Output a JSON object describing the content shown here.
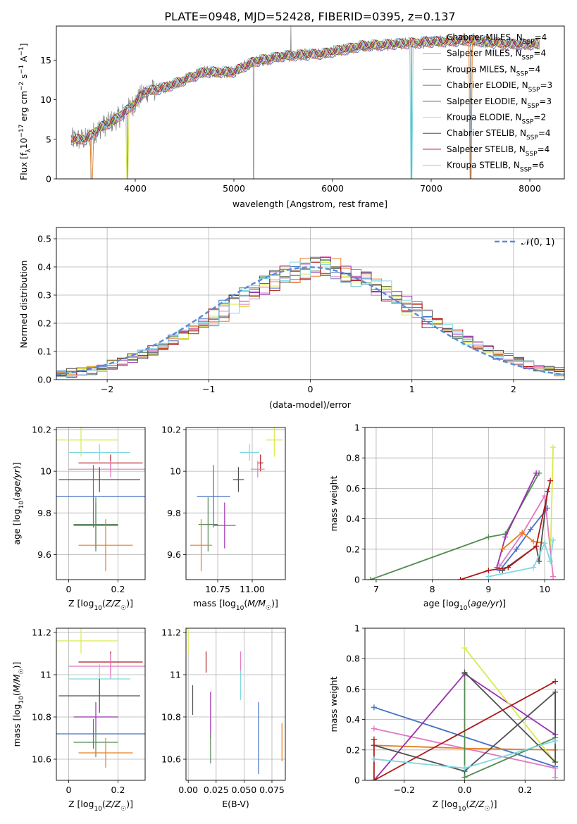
{
  "title": "PLATE=0948, MJD=52428, FIBERID=0395, z=0.137",
  "colors": {
    "Chabrier MILES": "#4472c4",
    "Salpeter MILES": "#e377c2",
    "Kroupa MILES": "#e67e22",
    "Chabrier ELODIE": "#548b54",
    "Salpeter ELODIE": "#9b30b0",
    "Kroupa ELODIE": "#d9ea4a",
    "Chabrier STELIB": "#505050",
    "Salpeter STELIB": "#b01818",
    "Kroupa STELIB": "#7dd8e0",
    "gaussian": "#5b8bd9",
    "grid": "#b0b0b0",
    "data": "#808080"
  },
  "models": [
    "Chabrier MILES",
    "Salpeter MILES",
    "Kroupa MILES",
    "Chabrier ELODIE",
    "Salpeter ELODIE",
    "Kroupa ELODIE",
    "Chabrier STELIB",
    "Salpeter STELIB",
    "Kroupa STELIB"
  ],
  "chart_data": [
    {
      "type": "line",
      "panel": "spectrum",
      "xlabel": "wavelength [Angstrom, rest frame]",
      "ylabel": "Flux [f_λ 10^-17 erg cm^-2 s^-1 A^-1]",
      "xlim": [
        3200,
        8350
      ],
      "ylim": [
        0,
        19.3
      ],
      "xticks": [
        4000,
        5000,
        6000,
        7000,
        8000
      ],
      "yticks": [
        0,
        5,
        10,
        15
      ],
      "legend": [
        {
          "model": "Chabrier MILES",
          "label": "Chabrier MILES, N",
          "sub": "SSP",
          "val": "=4"
        },
        {
          "model": "Salpeter MILES",
          "label": "Salpeter MILES, N",
          "sub": "SSP",
          "val": "=4"
        },
        {
          "model": "Kroupa MILES",
          "label": "Kroupa MILES, N",
          "sub": "SSP",
          "val": "=4"
        },
        {
          "model": "Chabrier ELODIE",
          "label": "Chabrier ELODIE, N",
          "sub": "SSP",
          "val": "=3"
        },
        {
          "model": "Salpeter ELODIE",
          "label": "Salpeter ELODIE, N",
          "sub": "SSP",
          "val": "=3"
        },
        {
          "model": "Kroupa ELODIE",
          "label": "Kroupa ELODIE, N",
          "sub": "SSP",
          "val": "=2"
        },
        {
          "model": "Chabrier STELIB",
          "label": "Chabrier STELIB, N",
          "sub": "SSP",
          "val": "=4"
        },
        {
          "model": "Salpeter STELIB",
          "label": "Salpeter STELIB, N",
          "sub": "SSP",
          "val": "=4"
        },
        {
          "model": "Kroupa STELIB",
          "label": "Kroupa STELIB, N",
          "sub": "SSP",
          "val": "=6"
        }
      ],
      "legend_position": "upper right",
      "continuum": [
        [
          3350,
          5.0
        ],
        [
          3500,
          5.0
        ],
        [
          3650,
          6.5
        ],
        [
          3800,
          7.5
        ],
        [
          3950,
          9.0
        ],
        [
          4100,
          11.0
        ],
        [
          4300,
          11.5
        ],
        [
          4500,
          12.5
        ],
        [
          4700,
          13.5
        ],
        [
          5000,
          13.5
        ],
        [
          5200,
          14.8
        ],
        [
          5500,
          15.5
        ],
        [
          5900,
          15.8
        ],
        [
          6300,
          16.8
        ],
        [
          6600,
          17.0
        ],
        [
          7000,
          17.3
        ],
        [
          7400,
          17.5
        ],
        [
          7800,
          17.0
        ],
        [
          8100,
          17.0
        ]
      ],
      "drops": [
        3550,
        3920,
        5200,
        5577,
        6800,
        7400
      ],
      "notes": "model spectra overlaid on observed spectrum; values approximate"
    },
    {
      "type": "line",
      "panel": "residual-histogram",
      "xlabel": "(data-model)/error",
      "ylabel": "Normed distribution",
      "xlim": [
        -2.5,
        2.5
      ],
      "ylim": [
        0,
        0.54
      ],
      "xticks": [
        -2,
        -1,
        0,
        1,
        2
      ],
      "xtick_labels": [
        "−2",
        "−1",
        "0",
        "1",
        "2"
      ],
      "yticks": [
        0.0,
        0.1,
        0.2,
        0.3,
        0.4,
        0.5
      ],
      "ytick_labels": [
        "0.0",
        "0.1",
        "0.2",
        "0.3",
        "0.4",
        "0.5"
      ],
      "bin_width": 0.1,
      "bins_from": -2.5,
      "series_base": [
        0.018,
        0.022,
        0.028,
        0.035,
        0.042,
        0.052,
        0.063,
        0.076,
        0.09,
        0.105,
        0.122,
        0.14,
        0.16,
        0.18,
        0.2,
        0.222,
        0.245,
        0.268,
        0.29,
        0.312,
        0.333,
        0.352,
        0.368,
        0.382,
        0.392,
        0.398,
        0.398,
        0.392,
        0.382,
        0.368,
        0.352,
        0.333,
        0.312,
        0.29,
        0.268,
        0.245,
        0.222,
        0.2,
        0.18,
        0.16,
        0.14,
        0.122,
        0.105,
        0.09,
        0.076,
        0.063,
        0.052,
        0.042,
        0.035,
        0.028
      ],
      "gaussian_label": "𝒩(0, 1)",
      "gaussian_mu": 0,
      "gaussian_sigma": 1,
      "legend_position": "upper right"
    },
    {
      "type": "scatter",
      "panel": "age-vs-Z",
      "xlabel": "Z [log10(Z/Z☉)]",
      "ylabel": "age [log10(age/yr)]",
      "xlim": [
        -0.05,
        0.31
      ],
      "ylim": [
        9.48,
        10.21
      ],
      "xticks": [
        0.0,
        0.2
      ],
      "yticks": [
        9.6,
        9.8,
        10.0,
        10.2
      ],
      "points": [
        {
          "model": "Kroupa ELODIE",
          "x": 0.05,
          "xerr": 0.15,
          "y": 10.15,
          "yerr": 0.08
        },
        {
          "model": "Kroupa STELIB",
          "x": 0.125,
          "xerr": 0.125,
          "y": 10.09,
          "yerr": 0.04
        },
        {
          "model": "Salpeter STELIB",
          "x": 0.17,
          "xerr": 0.13,
          "y": 10.04,
          "yerr": 0.04
        },
        {
          "model": "Salpeter MILES",
          "x": 0.17,
          "xerr": 0.17,
          "y": 10.01,
          "yerr": 0.04
        },
        {
          "model": "Chabrier STELIB",
          "x": 0.125,
          "xerr": 0.165,
          "y": 9.96,
          "yerr": 0.06
        },
        {
          "model": "Chabrier MILES",
          "x": 0.1,
          "xerr": 0.24,
          "y": 9.88,
          "yerr": 0.15
        },
        {
          "model": "Salpeter ELODIE",
          "x": 0.11,
          "xerr": 0.09,
          "y": 9.74,
          "yerr": 0.11
        },
        {
          "model": "Chabrier ELODIE",
          "x": 0.11,
          "xerr": 0.09,
          "y": 9.745,
          "yerr": 0.13
        },
        {
          "model": "Kroupa MILES",
          "x": 0.15,
          "xerr": 0.11,
          "y": 9.645,
          "yerr": 0.125
        }
      ]
    },
    {
      "type": "scatter",
      "panel": "age-vs-mass",
      "xlabel": "mass [log10(M/M☉)]",
      "ylabel": "",
      "xlim": [
        10.52,
        11.24
      ],
      "ylim": [
        9.48,
        10.21
      ],
      "xticks": [
        10.75,
        11.0
      ],
      "xtick_labels": [
        "10.75",
        "11.00"
      ],
      "yticks": [
        9.6,
        9.8,
        10.0,
        10.2
      ],
      "points": [
        {
          "model": "Kroupa ELODIE",
          "x": 11.16,
          "xerr": 0.06,
          "y": 10.15,
          "yerr": 0.08
        },
        {
          "model": "Kroupa STELIB",
          "x": 10.98,
          "xerr": 0.07,
          "y": 10.09,
          "yerr": 0.04
        },
        {
          "model": "Salpeter STELIB",
          "x": 11.06,
          "xerr": 0.02,
          "y": 10.04,
          "yerr": 0.04
        },
        {
          "model": "Salpeter MILES",
          "x": 11.04,
          "xerr": 0.05,
          "y": 10.01,
          "yerr": 0.04
        },
        {
          "model": "Chabrier STELIB",
          "x": 10.9,
          "xerr": 0.04,
          "y": 9.96,
          "yerr": 0.06
        },
        {
          "model": "Chabrier MILES",
          "x": 10.72,
          "xerr": 0.12,
          "y": 9.88,
          "yerr": 0.15
        },
        {
          "model": "Salpeter ELODIE",
          "x": 10.8,
          "xerr": 0.08,
          "y": 9.74,
          "yerr": 0.11
        },
        {
          "model": "Chabrier ELODIE",
          "x": 10.68,
          "xerr": 0.07,
          "y": 9.745,
          "yerr": 0.13
        },
        {
          "model": "Kroupa MILES",
          "x": 10.63,
          "xerr": 0.08,
          "y": 9.645,
          "yerr": 0.125
        }
      ]
    },
    {
      "type": "line",
      "panel": "mass-weight-vs-age",
      "xlabel": "age [log10(age/yr)]",
      "ylabel": "mass weight",
      "xlim": [
        6.8,
        10.35
      ],
      "ylim": [
        0.0,
        1.0
      ],
      "xticks": [
        7,
        8,
        9,
        10
      ],
      "yticks": [
        0.0,
        0.2,
        0.4,
        0.6,
        0.8,
        1.0
      ],
      "series": [
        {
          "model": "Chabrier ELODIE",
          "points": [
            [
              6.9,
              0.0
            ],
            [
              9.0,
              0.28
            ],
            [
              9.3,
              0.3
            ],
            [
              9.9,
              0.7
            ]
          ]
        },
        {
          "model": "Salpeter ELODIE",
          "points": [
            [
              9.15,
              0.08
            ],
            [
              9.3,
              0.28
            ],
            [
              9.85,
              0.7
            ]
          ]
        },
        {
          "model": "Kroupa ELODIE",
          "points": [
            [
              10.1,
              0.12
            ],
            [
              10.15,
              0.87
            ]
          ]
        },
        {
          "model": "Chabrier MILES",
          "points": [
            [
              9.2,
              0.06
            ],
            [
              9.5,
              0.2
            ],
            [
              9.75,
              0.33
            ],
            [
              10.05,
              0.47
            ]
          ]
        },
        {
          "model": "Salpeter MILES",
          "points": [
            [
              9.2,
              0.09
            ],
            [
              9.6,
              0.3
            ],
            [
              10.0,
              0.55
            ],
            [
              10.15,
              0.02
            ]
          ]
        },
        {
          "model": "Kroupa MILES",
          "points": [
            [
              9.25,
              0.2
            ],
            [
              9.6,
              0.31
            ],
            [
              9.8,
              0.25
            ],
            [
              10.0,
              0.24
            ]
          ]
        },
        {
          "model": "Chabrier STELIB",
          "points": [
            [
              9.25,
              0.06
            ],
            [
              9.85,
              0.22
            ],
            [
              9.9,
              0.12
            ],
            [
              10.05,
              0.58
            ]
          ]
        },
        {
          "model": "Salpeter STELIB",
          "points": [
            [
              8.5,
              0.0
            ],
            [
              9.0,
              0.06
            ],
            [
              9.35,
              0.08
            ],
            [
              9.85,
              0.22
            ],
            [
              10.1,
              0.65
            ]
          ]
        },
        {
          "model": "Kroupa STELIB",
          "points": [
            [
              9.0,
              0.02
            ],
            [
              9.8,
              0.08
            ],
            [
              10.0,
              0.24
            ],
            [
              10.1,
              0.12
            ],
            [
              10.15,
              0.26
            ]
          ]
        }
      ]
    },
    {
      "type": "scatter",
      "panel": "mass-vs-Z",
      "xlabel": "Z [log10(Z/Z☉)]",
      "ylabel": "mass [log10(M/M☉)]",
      "xlim": [
        -0.05,
        0.31
      ],
      "ylim": [
        10.5,
        11.22
      ],
      "xticks": [
        0.0,
        0.2
      ],
      "yticks": [
        10.6,
        10.8,
        11.0,
        11.2
      ],
      "points": [
        {
          "model": "Kroupa ELODIE",
          "x": 0.05,
          "xerr": 0.15,
          "y": 11.16,
          "yerr": 0.06
        },
        {
          "model": "Salpeter STELIB",
          "x": 0.17,
          "xerr": 0.13,
          "y": 11.06,
          "yerr": 0.05
        },
        {
          "model": "Salpeter MILES",
          "x": 0.17,
          "xerr": 0.17,
          "y": 11.04,
          "yerr": 0.06
        },
        {
          "model": "Kroupa STELIB",
          "x": 0.125,
          "xerr": 0.125,
          "y": 10.98,
          "yerr": 0.07
        },
        {
          "model": "Chabrier STELIB",
          "x": 0.125,
          "xerr": 0.165,
          "y": 10.9,
          "yerr": 0.08
        },
        {
          "model": "Salpeter ELODIE",
          "x": 0.11,
          "xerr": 0.09,
          "y": 10.8,
          "yerr": 0.07
        },
        {
          "model": "Chabrier MILES",
          "x": 0.1,
          "xerr": 0.24,
          "y": 10.72,
          "yerr": 0.07
        },
        {
          "model": "Chabrier ELODIE",
          "x": 0.11,
          "xerr": 0.09,
          "y": 10.68,
          "yerr": 0.07
        },
        {
          "model": "Kroupa MILES",
          "x": 0.15,
          "xerr": 0.11,
          "y": 10.63,
          "yerr": 0.07
        }
      ]
    },
    {
      "type": "scatter",
      "panel": "mass-vs-ebv",
      "xlabel": "E(B-V)",
      "ylabel": "",
      "xlim": [
        -0.002,
        0.087
      ],
      "ylim": [
        10.5,
        11.22
      ],
      "xticks": [
        0.0,
        0.025,
        0.05,
        0.075
      ],
      "xtick_labels": [
        "0.00",
        "0.025",
        "0.050",
        "0.075"
      ],
      "yticks": [
        10.6,
        10.8,
        11.0,
        11.2
      ],
      "points": [
        {
          "model": "Kroupa ELODIE",
          "x": 0.0,
          "y": 11.16,
          "yerr": 0.06
        },
        {
          "model": "Salpeter STELIB",
          "x": 0.016,
          "y": 11.06,
          "yerr": 0.05
        },
        {
          "model": "Salpeter MILES",
          "x": 0.047,
          "y": 11.04,
          "yerr": 0.07
        },
        {
          "model": "Kroupa STELIB",
          "x": 0.047,
          "y": 10.95,
          "yerr": 0.07
        },
        {
          "model": "Chabrier STELIB",
          "x": 0.004,
          "y": 10.88,
          "yerr": 0.07
        },
        {
          "model": "Salpeter ELODIE",
          "x": 0.02,
          "y": 10.81,
          "yerr": 0.11
        },
        {
          "model": "Chabrier MILES",
          "x": 0.063,
          "y": 10.7,
          "yerr": 0.17
        },
        {
          "model": "Chabrier ELODIE",
          "x": 0.02,
          "y": 10.65,
          "yerr": 0.07
        },
        {
          "model": "Kroupa MILES",
          "x": 0.084,
          "y": 10.68,
          "yerr": 0.09
        }
      ]
    },
    {
      "type": "line",
      "panel": "mass-weight-vs-Z",
      "xlabel": "Z [log10(Z/Z☉)]",
      "ylabel": "mass weight",
      "xlim": [
        -0.33,
        0.33
      ],
      "ylim": [
        0.0,
        1.0
      ],
      "xticks": [
        -0.2,
        0.0,
        0.2
      ],
      "xtick_labels": [
        "−0.2",
        "0.0",
        "0.2"
      ],
      "yticks": [
        0.0,
        0.2,
        0.4,
        0.6,
        0.8,
        1.0
      ],
      "series": [
        {
          "model": "Chabrier MILES",
          "points": [
            [
              -0.3,
              0.48
            ],
            [
              0.3,
              0.09
            ]
          ]
        },
        {
          "model": "Salpeter MILES",
          "points": [
            [
              -0.3,
              0.34
            ],
            [
              0.3,
              0.08
            ],
            [
              0.3,
              0.02
            ]
          ]
        },
        {
          "model": "Kroupa MILES",
          "points": [
            [
              -0.3,
              0.23
            ],
            [
              0.0,
              0.21
            ],
            [
              0.3,
              0.2
            ]
          ]
        },
        {
          "model": "Chabrier ELODIE",
          "points": [
            [
              0.0,
              0.7
            ],
            [
              0.0,
              0.02
            ],
            [
              0.3,
              0.28
            ]
          ]
        },
        {
          "model": "Salpeter ELODIE",
          "points": [
            [
              -0.3,
              0.0
            ],
            [
              0.0,
              0.7
            ],
            [
              0.3,
              0.3
            ]
          ]
        },
        {
          "model": "Kroupa ELODIE",
          "points": [
            [
              0.0,
              0.87
            ],
            [
              0.3,
              0.12
            ]
          ]
        },
        {
          "model": "Chabrier STELIB",
          "points": [
            [
              -0.3,
              0.23
            ],
            [
              0.0,
              0.06
            ],
            [
              0.3,
              0.58
            ],
            [
              0.3,
              0.12
            ],
            [
              0.0,
              0.71
            ]
          ]
        },
        {
          "model": "Salpeter STELIB",
          "points": [
            [
              -0.3,
              0.27
            ],
            [
              -0.3,
              0.0
            ],
            [
              0.3,
              0.65
            ]
          ]
        },
        {
          "model": "Kroupa STELIB",
          "points": [
            [
              -0.3,
              0.14
            ],
            [
              0.0,
              0.08
            ],
            [
              0.3,
              0.26
            ]
          ]
        }
      ]
    }
  ]
}
